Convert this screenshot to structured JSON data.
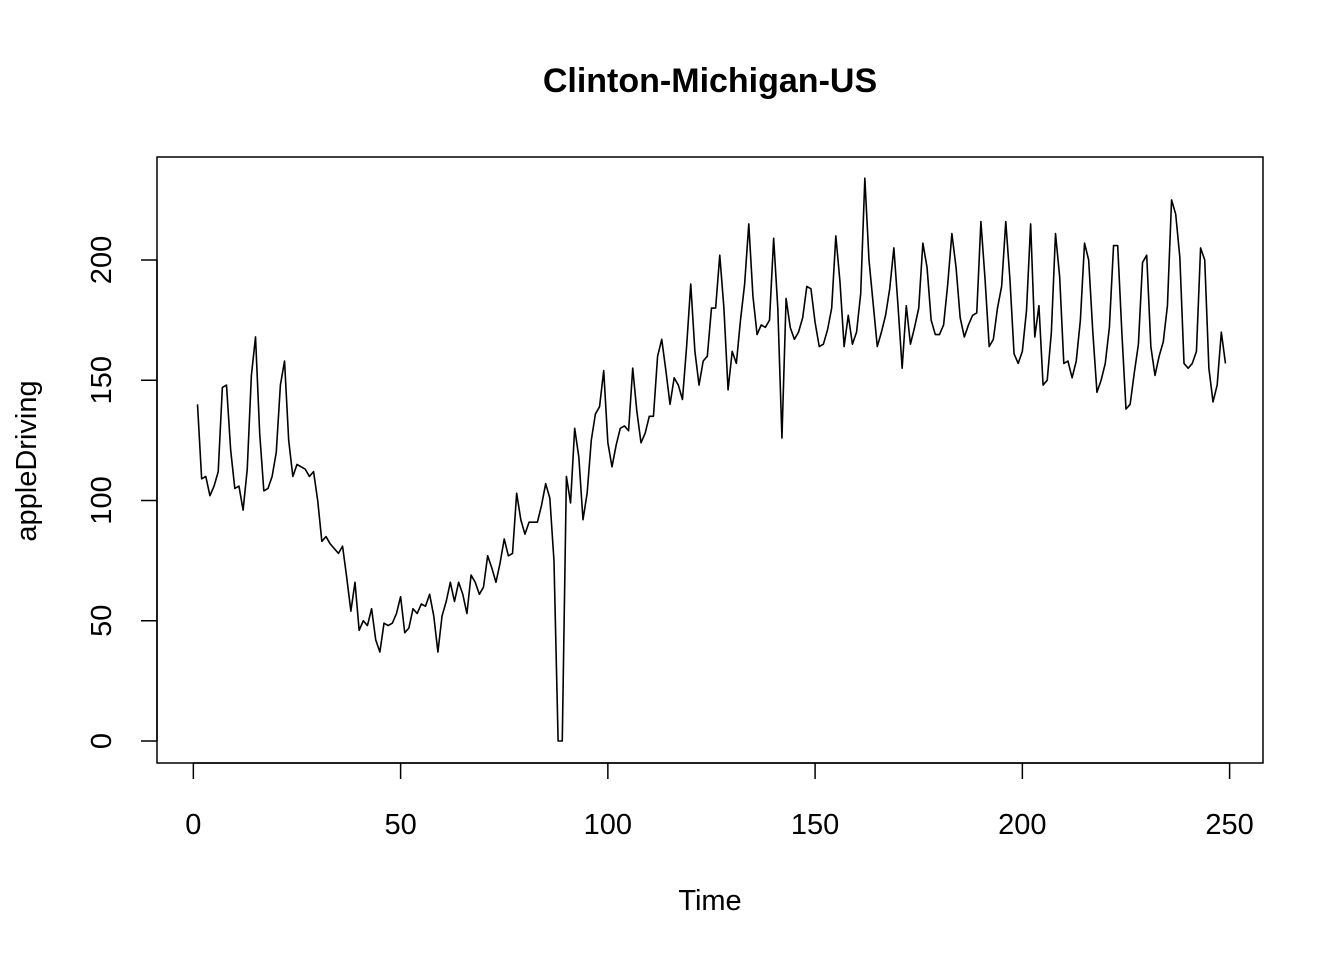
{
  "chart_data": {
    "type": "line",
    "title": "Clinton-Michigan-US",
    "xlabel": "Time",
    "ylabel": "appleDriving",
    "xlim": [
      1,
      248
    ],
    "ylim": [
      0,
      233
    ],
    "x_ticks": [
      0,
      50,
      100,
      150,
      200,
      250
    ],
    "y_ticks": [
      0,
      50,
      100,
      150,
      200
    ],
    "series": [
      {
        "x_start": 1,
        "values": [
          140,
          109,
          110,
          102,
          106,
          112,
          147,
          148,
          121,
          105,
          106,
          96,
          113,
          152,
          168,
          128,
          104,
          105,
          110,
          120,
          148,
          158,
          125,
          110,
          115,
          114,
          113,
          110,
          112,
          100,
          83,
          85,
          82,
          80,
          78,
          81,
          68,
          54,
          66,
          46,
          50,
          48,
          55,
          42,
          37,
          49,
          48,
          49,
          53,
          60,
          45,
          47,
          55,
          53,
          57,
          56,
          61,
          52,
          37,
          52,
          58,
          66,
          58,
          66,
          61,
          53,
          69,
          66,
          61,
          64,
          77,
          72,
          66,
          74,
          84,
          77,
          78,
          103,
          92,
          86,
          91,
          91,
          91,
          98,
          107,
          101,
          75,
          0,
          0,
          110,
          99,
          130,
          118,
          92,
          103,
          125,
          136,
          139,
          154,
          124,
          114,
          123,
          130,
          131,
          129,
          155,
          137,
          124,
          128,
          135,
          135,
          160,
          167,
          154,
          140,
          151,
          148,
          142,
          164,
          190,
          162,
          148,
          158,
          160,
          180,
          180,
          202,
          180,
          146,
          162,
          157,
          175,
          190,
          215,
          185,
          169,
          173,
          172,
          175,
          209,
          180,
          126,
          184,
          172,
          167,
          170,
          176,
          189,
          188,
          174,
          164,
          165,
          171,
          180,
          210,
          191,
          164,
          177,
          165,
          170,
          186,
          234,
          200,
          182,
          164,
          170,
          177,
          188,
          205,
          181,
          155,
          181,
          165,
          172,
          180,
          207,
          197,
          175,
          169,
          169,
          173,
          190,
          211,
          197,
          176,
          168,
          173,
          177,
          178,
          216,
          192,
          164,
          167,
          180,
          189,
          216,
          192,
          161,
          157,
          162,
          179,
          215,
          168,
          181,
          148,
          150,
          170,
          211,
          193,
          157,
          158,
          151,
          158,
          175,
          207,
          200,
          170,
          145,
          150,
          157,
          172,
          206,
          206,
          170,
          138,
          140,
          153,
          165,
          199,
          202,
          164,
          152,
          160,
          166,
          181,
          225,
          219,
          201,
          157,
          155,
          157,
          162,
          205,
          200,
          155,
          141,
          148,
          170,
          157
        ]
      }
    ]
  }
}
